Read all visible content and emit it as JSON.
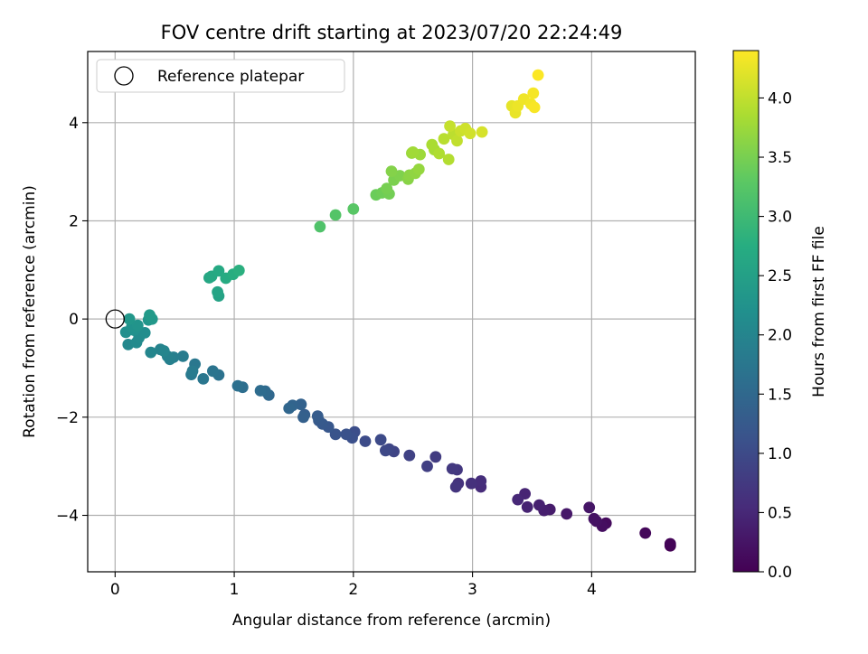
{
  "chart_data": {
    "type": "scatter",
    "title": "FOV centre drift starting at 2023/07/20 22:24:49",
    "xlabel": "Angular distance from reference (arcmin)",
    "ylabel": "Rotation from reference (arcmin)",
    "xlim": [
      -0.23,
      4.87
    ],
    "ylim": [
      -5.15,
      5.45
    ],
    "xticks": [
      0,
      1,
      2,
      3,
      4
    ],
    "yticks": [
      -4,
      -2,
      0,
      2,
      4
    ],
    "grid": true,
    "legend": {
      "placement": "top-left",
      "entries": [
        "Reference platepar"
      ]
    },
    "reference": {
      "x": 0,
      "y": 0
    },
    "colorbar": {
      "label": "Hours from first FF file",
      "colormap": "viridis",
      "range": [
        0.0,
        4.4
      ],
      "ticks": [
        0.0,
        0.5,
        1.0,
        1.5,
        2.0,
        2.5,
        3.0,
        3.5,
        4.0
      ],
      "tick_labels": [
        "0.0",
        "0.5",
        "1.0",
        "1.5",
        "2.0",
        "2.5",
        "3.0",
        "3.5",
        "4.0"
      ]
    },
    "points": [
      [
        4.66,
        -4.62,
        0.02
      ],
      [
        4.66,
        -4.58,
        0.04
      ],
      [
        4.45,
        -4.36,
        0.08
      ],
      [
        4.12,
        -4.16,
        0.13
      ],
      [
        4.09,
        -4.22,
        0.17
      ],
      [
        4.04,
        -4.12,
        0.2
      ],
      [
        4.02,
        -4.07,
        0.22
      ],
      [
        3.98,
        -3.84,
        0.26
      ],
      [
        3.79,
        -3.97,
        0.3
      ],
      [
        3.65,
        -3.88,
        0.34
      ],
      [
        3.6,
        -3.9,
        0.37
      ],
      [
        3.56,
        -3.79,
        0.4
      ],
      [
        3.46,
        -3.83,
        0.43
      ],
      [
        3.44,
        -3.56,
        0.46
      ],
      [
        3.38,
        -3.68,
        0.5
      ],
      [
        3.07,
        -3.42,
        0.55
      ],
      [
        3.07,
        -3.3,
        0.58
      ],
      [
        2.99,
        -3.35,
        0.62
      ],
      [
        2.88,
        -3.35,
        0.66
      ],
      [
        2.86,
        -3.42,
        0.69
      ],
      [
        2.87,
        -3.07,
        0.72
      ],
      [
        2.83,
        -3.05,
        0.75
      ],
      [
        2.69,
        -2.81,
        0.79
      ],
      [
        2.62,
        -3.0,
        0.83
      ],
      [
        2.47,
        -2.78,
        0.87
      ],
      [
        2.34,
        -2.7,
        0.9
      ],
      [
        2.3,
        -2.65,
        0.93
      ],
      [
        2.27,
        -2.68,
        0.96
      ],
      [
        2.23,
        -2.46,
        0.99
      ],
      [
        2.1,
        -2.49,
        1.03
      ],
      [
        2.01,
        -2.3,
        1.06
      ],
      [
        1.99,
        -2.42,
        1.09
      ],
      [
        1.94,
        -2.35,
        1.12
      ],
      [
        1.85,
        -2.35,
        1.16
      ],
      [
        1.79,
        -2.2,
        1.2
      ],
      [
        1.74,
        -2.14,
        1.23
      ],
      [
        1.71,
        -2.07,
        1.26
      ],
      [
        1.7,
        -1.98,
        1.29
      ],
      [
        1.59,
        -1.95,
        1.33
      ],
      [
        1.58,
        -2.0,
        1.36
      ],
      [
        1.56,
        -1.74,
        1.39
      ],
      [
        1.49,
        -1.76,
        1.42
      ],
      [
        1.46,
        -1.82,
        1.46
      ],
      [
        1.29,
        -1.55,
        1.5
      ],
      [
        1.26,
        -1.47,
        1.53
      ],
      [
        1.22,
        -1.46,
        1.56
      ],
      [
        1.07,
        -1.39,
        1.6
      ],
      [
        1.03,
        -1.36,
        1.63
      ],
      [
        0.87,
        -1.14,
        1.67
      ],
      [
        0.82,
        -1.06,
        1.7
      ],
      [
        0.74,
        -1.22,
        1.73
      ],
      [
        0.67,
        -0.92,
        1.76
      ],
      [
        0.64,
        -1.13,
        1.79
      ],
      [
        0.65,
        -1.06,
        1.82
      ],
      [
        0.57,
        -0.76,
        1.85
      ],
      [
        0.49,
        -0.78,
        1.88
      ],
      [
        0.46,
        -0.82,
        1.91
      ],
      [
        0.44,
        -0.76,
        1.94
      ],
      [
        0.38,
        -0.62,
        1.97
      ],
      [
        0.41,
        -0.65,
        2.0
      ],
      [
        0.3,
        -0.68,
        2.03
      ],
      [
        0.11,
        -0.52,
        2.06
      ],
      [
        0.18,
        -0.48,
        2.09
      ],
      [
        0.2,
        -0.38,
        2.12
      ],
      [
        0.25,
        -0.28,
        2.15
      ],
      [
        0.09,
        -0.27,
        2.18
      ],
      [
        0.16,
        -0.23,
        2.21
      ],
      [
        0.14,
        -0.16,
        2.24
      ],
      [
        0.19,
        -0.13,
        2.27
      ],
      [
        0.28,
        -0.02,
        2.3
      ],
      [
        0.12,
        0.0,
        2.33
      ],
      [
        0.31,
        0.0,
        2.36
      ],
      [
        0.29,
        0.08,
        2.39
      ],
      [
        0.87,
        0.47,
        2.55
      ],
      [
        0.86,
        0.55,
        2.58
      ],
      [
        0.79,
        0.84,
        2.62
      ],
      [
        0.81,
        0.87,
        2.65
      ],
      [
        0.87,
        0.98,
        2.68
      ],
      [
        0.93,
        0.83,
        2.72
      ],
      [
        0.99,
        0.91,
        2.76
      ],
      [
        1.04,
        0.99,
        2.79
      ],
      [
        1.72,
        1.88,
        3.18
      ],
      [
        1.85,
        2.12,
        3.22
      ],
      [
        2.0,
        2.24,
        3.26
      ],
      [
        2.19,
        2.53,
        3.4
      ],
      [
        2.24,
        2.57,
        3.43
      ],
      [
        2.3,
        2.55,
        3.46
      ],
      [
        2.28,
        2.66,
        3.49
      ],
      [
        2.34,
        2.83,
        3.52
      ],
      [
        2.39,
        2.92,
        3.55
      ],
      [
        2.32,
        3.01,
        3.58
      ],
      [
        2.46,
        2.85,
        3.61
      ],
      [
        2.47,
        2.93,
        3.64
      ],
      [
        2.52,
        2.97,
        3.67
      ],
      [
        2.55,
        3.05,
        3.7
      ],
      [
        2.49,
        3.38,
        3.73
      ],
      [
        2.56,
        3.35,
        3.76
      ],
      [
        2.5,
        3.4,
        3.79
      ],
      [
        2.68,
        3.45,
        3.82
      ],
      [
        2.66,
        3.55,
        3.85
      ],
      [
        2.72,
        3.37,
        3.88
      ],
      [
        2.8,
        3.25,
        3.91
      ],
      [
        2.76,
        3.67,
        3.94
      ],
      [
        2.84,
        3.76,
        3.97
      ],
      [
        2.87,
        3.63,
        4.0
      ],
      [
        2.81,
        3.93,
        4.03
      ],
      [
        2.9,
        3.83,
        4.06
      ],
      [
        2.94,
        3.88,
        4.09
      ],
      [
        2.98,
        3.78,
        4.11
      ],
      [
        3.08,
        3.81,
        4.14
      ],
      [
        3.33,
        4.34,
        4.24
      ],
      [
        3.36,
        4.2,
        4.27
      ],
      [
        3.38,
        4.34,
        4.29
      ],
      [
        3.43,
        4.48,
        4.31
      ],
      [
        3.49,
        4.38,
        4.33
      ],
      [
        3.51,
        4.6,
        4.35
      ],
      [
        3.52,
        4.31,
        4.37
      ],
      [
        3.55,
        4.97,
        4.39
      ]
    ]
  }
}
